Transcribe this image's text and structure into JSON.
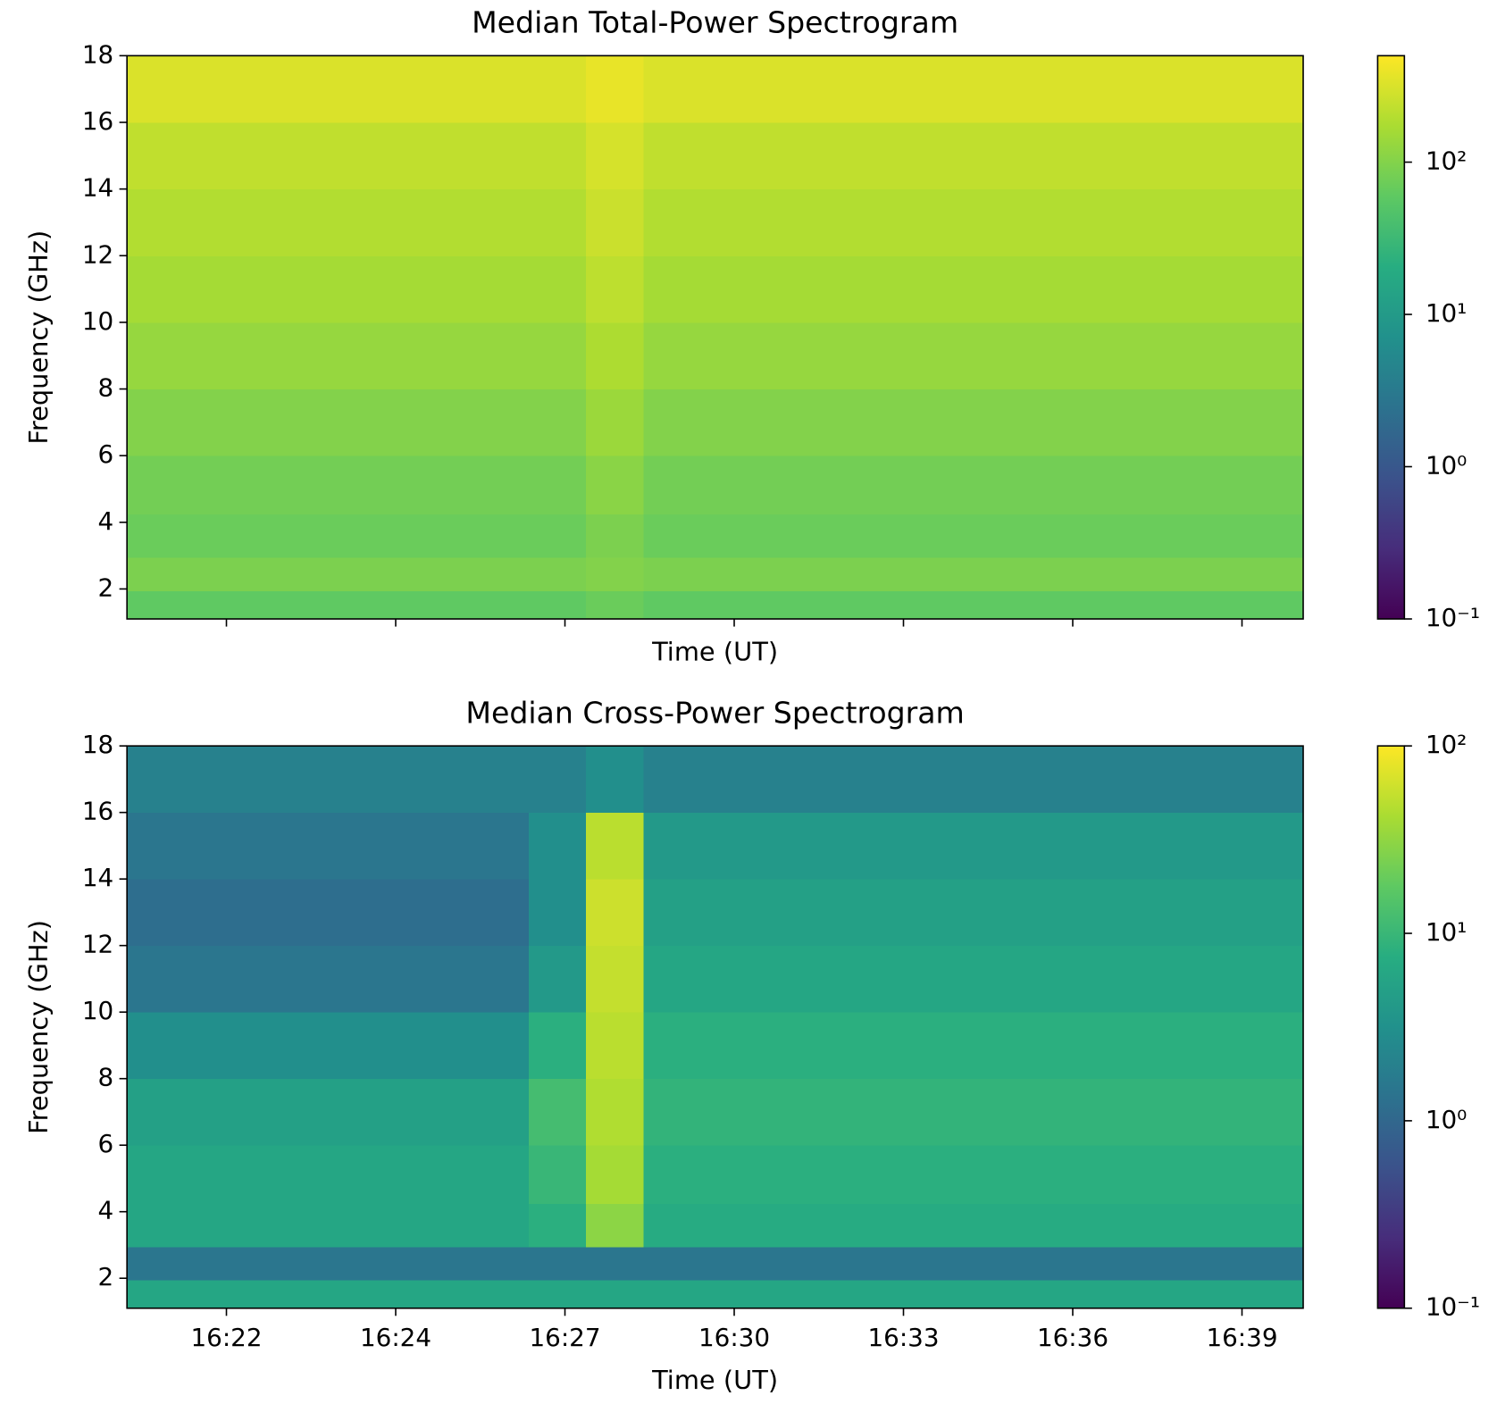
{
  "chart_data": [
    {
      "type": "heatmap",
      "title": "Median Total-Power Spectrogram",
      "xlabel": "Time (UT)",
      "ylabel": "Frequency (GHz)",
      "x": [
        "16:20:46",
        "16:21:46",
        "16:22:46",
        "16:23:46",
        "16:24:46",
        "16:25:46",
        "16:26:46",
        "16:27:46",
        "16:28:46",
        "16:29:46",
        "16:30:46",
        "16:31:46",
        "16:32:46",
        "16:33:46",
        "16:34:46",
        "16:35:46",
        "16:36:46",
        "16:37:46",
        "16:38:46",
        "16:39:46"
      ],
      "y": [
        1.5,
        2.4,
        3.5,
        5,
        7,
        9,
        11,
        13,
        15,
        17
      ],
      "z": [
        [
          60,
          60,
          60,
          60,
          60,
          60,
          60,
          60,
          70,
          60,
          60,
          60,
          60,
          60,
          60,
          60,
          60,
          60,
          60,
          60
        ],
        [
          90,
          90,
          90,
          90,
          90,
          90,
          90,
          90,
          100,
          90,
          90,
          90,
          90,
          90,
          90,
          90,
          90,
          90,
          90,
          90
        ],
        [
          70,
          70,
          70,
          70,
          70,
          70,
          70,
          70,
          90,
          70,
          70,
          70,
          70,
          70,
          70,
          70,
          70,
          70,
          70,
          70
        ],
        [
          80,
          80,
          80,
          80,
          80,
          80,
          80,
          80,
          110,
          80,
          80,
          80,
          80,
          80,
          80,
          80,
          80,
          80,
          80,
          80
        ],
        [
          100,
          100,
          100,
          100,
          100,
          100,
          100,
          100,
          140,
          100,
          100,
          100,
          100,
          100,
          100,
          100,
          100,
          100,
          100,
          100
        ],
        [
          130,
          130,
          130,
          130,
          130,
          130,
          130,
          130,
          180,
          130,
          130,
          130,
          130,
          130,
          130,
          130,
          130,
          130,
          130,
          130
        ],
        [
          160,
          160,
          160,
          160,
          160,
          160,
          160,
          160,
          220,
          160,
          160,
          160,
          160,
          160,
          160,
          160,
          160,
          160,
          160,
          160
        ],
        [
          190,
          190,
          190,
          190,
          190,
          190,
          190,
          190,
          260,
          190,
          190,
          190,
          190,
          190,
          190,
          190,
          190,
          190,
          190,
          190
        ],
        [
          230,
          230,
          230,
          230,
          230,
          230,
          230,
          230,
          300,
          230,
          230,
          230,
          230,
          230,
          230,
          230,
          230,
          230,
          230,
          230
        ],
        [
          320,
          320,
          320,
          320,
          320,
          320,
          320,
          320,
          380,
          320,
          320,
          320,
          320,
          320,
          320,
          320,
          320,
          320,
          320,
          320
        ]
      ],
      "xlim": [
        "16:20:16",
        "16:40:46"
      ],
      "ylim": [
        1.1,
        18
      ],
      "xticks": [
        {
          "value": "16:22:00",
          "label": "16:22"
        },
        {
          "value": "16:24:57",
          "label": "16:24"
        },
        {
          "value": "16:27:54",
          "label": "16:27"
        },
        {
          "value": "16:30:51",
          "label": "16:30"
        },
        {
          "value": "16:33:48",
          "label": "16:33"
        },
        {
          "value": "16:36:45",
          "label": "16:36"
        },
        {
          "value": "16:39:42",
          "label": "16:39"
        }
      ],
      "xtick_labels": false,
      "yticks": [
        2,
        4,
        6,
        8,
        10,
        12,
        14,
        16,
        18
      ],
      "colormap": "viridis",
      "color_scale": "log",
      "clim": [
        0.1,
        500
      ],
      "cticks": [
        {
          "value": 0.1,
          "label": "10⁻¹"
        },
        {
          "value": 1,
          "label": "10⁰"
        },
        {
          "value": 10,
          "label": "10¹"
        },
        {
          "value": 100,
          "label": "10²"
        }
      ]
    },
    {
      "type": "heatmap",
      "title": "Median Cross-Power Spectrogram",
      "xlabel": "Time (UT)",
      "ylabel": "Frequency (GHz)",
      "x": [
        "16:20:46",
        "16:21:46",
        "16:22:46",
        "16:23:46",
        "16:24:46",
        "16:25:46",
        "16:26:46",
        "16:27:46",
        "16:28:46",
        "16:29:46",
        "16:30:46",
        "16:31:46",
        "16:32:46",
        "16:33:46",
        "16:34:46",
        "16:35:46",
        "16:36:46",
        "16:37:46",
        "16:38:46",
        "16:39:46"
      ],
      "y": [
        1.5,
        2.4,
        3.5,
        5,
        7,
        9,
        11,
        13,
        15,
        17
      ],
      "z": [
        [
          6,
          6,
          6,
          6,
          6,
          6,
          6,
          6,
          6,
          6,
          6,
          6,
          6,
          6,
          6,
          6,
          6,
          6,
          6,
          6
        ],
        [
          1.5,
          1.5,
          1.5,
          1.5,
          1.5,
          1.5,
          1.5,
          1.5,
          1.5,
          1.5,
          1.5,
          1.5,
          1.5,
          1.5,
          1.5,
          1.5,
          1.5,
          1.5,
          1.5,
          1.5
        ],
        [
          6,
          6,
          6,
          6,
          6,
          6,
          6,
          8,
          30,
          7,
          7,
          7,
          7,
          7,
          7,
          7,
          7,
          7,
          7,
          7
        ],
        [
          6,
          6,
          6,
          6,
          6,
          6,
          6,
          10,
          40,
          8,
          8,
          8,
          8,
          8,
          8,
          8,
          8,
          8,
          8,
          8
        ],
        [
          5,
          5,
          5,
          5,
          5,
          5,
          5,
          12,
          45,
          9,
          9,
          9,
          9,
          9,
          9,
          9,
          9,
          9,
          9,
          9
        ],
        [
          3,
          3,
          3,
          3,
          3,
          3,
          3,
          8,
          50,
          8,
          8,
          8,
          8,
          8,
          8,
          8,
          8,
          8,
          8,
          8
        ],
        [
          1.5,
          1.5,
          1.5,
          1.5,
          1.5,
          1.5,
          1.5,
          4,
          55,
          6,
          6,
          6,
          6,
          6,
          6,
          6,
          6,
          6,
          6,
          6
        ],
        [
          1.2,
          1.2,
          1.2,
          1.2,
          1.2,
          1.2,
          1.2,
          3,
          60,
          5,
          5,
          5,
          5,
          5,
          5,
          5,
          5,
          5,
          5,
          5
        ],
        [
          1.5,
          1.5,
          1.5,
          1.5,
          1.5,
          1.5,
          1.5,
          3,
          50,
          4,
          4,
          4,
          4,
          4,
          4,
          4,
          4,
          4,
          4,
          4
        ],
        [
          2,
          2,
          2,
          2,
          2,
          2,
          2,
          2,
          3,
          2,
          2,
          2,
          2,
          2,
          2,
          2,
          2,
          2,
          2,
          2
        ]
      ],
      "xlim": [
        "16:20:16",
        "16:40:46"
      ],
      "ylim": [
        1.1,
        18
      ],
      "xticks": [
        {
          "value": "16:22:00",
          "label": "16:22"
        },
        {
          "value": "16:24:57",
          "label": "16:24"
        },
        {
          "value": "16:27:54",
          "label": "16:27"
        },
        {
          "value": "16:30:51",
          "label": "16:30"
        },
        {
          "value": "16:33:48",
          "label": "16:33"
        },
        {
          "value": "16:36:45",
          "label": "16:36"
        },
        {
          "value": "16:39:42",
          "label": "16:39"
        }
      ],
      "xtick_labels": true,
      "yticks": [
        2,
        4,
        6,
        8,
        10,
        12,
        14,
        16,
        18
      ],
      "colormap": "viridis",
      "color_scale": "log",
      "clim": [
        0.1,
        100
      ],
      "cticks": [
        {
          "value": 0.1,
          "label": "10⁻¹"
        },
        {
          "value": 1,
          "label": "10⁰"
        },
        {
          "value": 10,
          "label": "10¹"
        },
        {
          "value": 100,
          "label": "10²"
        }
      ]
    }
  ]
}
